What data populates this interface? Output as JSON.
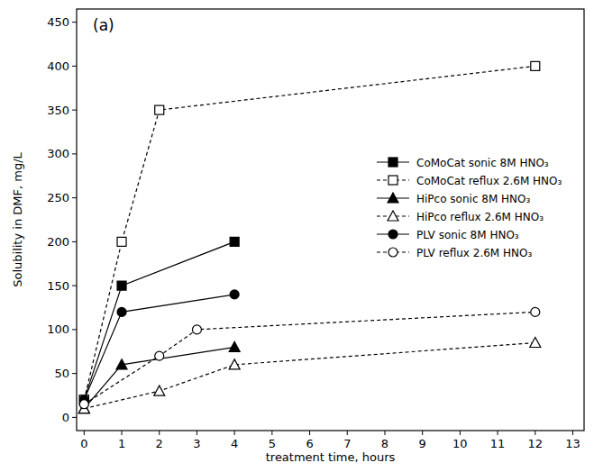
{
  "chart_data": {
    "type": "line",
    "title": "(a)",
    "x_label": "treatment time, hours",
    "y_label": "Solubility in DMF, mg/L",
    "xlim": [
      -0.2,
      13.3
    ],
    "xticks": [
      0,
      1,
      2,
      3,
      4,
      5,
      6,
      7,
      8,
      9,
      10,
      11,
      12,
      13
    ],
    "ylim": [
      -15,
      465
    ],
    "yticks": [
      0,
      50,
      100,
      150,
      200,
      250,
      300,
      350,
      400,
      450
    ],
    "grid": false,
    "legend": "right",
    "series": [
      {
        "name": "CoMoCat sonic 8M HNO₃",
        "color": "#000000",
        "marker": "square",
        "line_style": "solid",
        "x": [
          0,
          1,
          4
        ],
        "values": [
          20,
          150,
          200
        ]
      },
      {
        "name": "CoMoCat reflux 2.6M HNO₃",
        "color": "#000000",
        "marker": "open-square",
        "line_style": "dashed",
        "x": [
          0,
          1,
          2,
          12
        ],
        "values": [
          20,
          200,
          350,
          400
        ]
      },
      {
        "name": "HiPco sonic 8M HNO₃",
        "color": "#000000",
        "marker": "triangle",
        "line_style": "solid",
        "x": [
          0,
          1,
          4
        ],
        "values": [
          10,
          60,
          80
        ]
      },
      {
        "name": "HiPco reflux 2.6M HNO₃",
        "color": "#000000",
        "marker": "open-triangle",
        "line_style": "dashed",
        "x": [
          0,
          2,
          4,
          12
        ],
        "values": [
          10,
          30,
          60,
          85
        ]
      },
      {
        "name": "PLV sonic 8M HNO₃",
        "color": "#000000",
        "marker": "circle",
        "line_style": "solid",
        "x": [
          0,
          1,
          4
        ],
        "values": [
          20,
          120,
          140
        ]
      },
      {
        "name": "PLV reflux 2.6M HNO₃",
        "color": "#000000",
        "marker": "open-circle",
        "line_style": "dashed",
        "x": [
          0,
          2,
          3,
          12
        ],
        "values": [
          15,
          70,
          100,
          120
        ]
      }
    ]
  }
}
